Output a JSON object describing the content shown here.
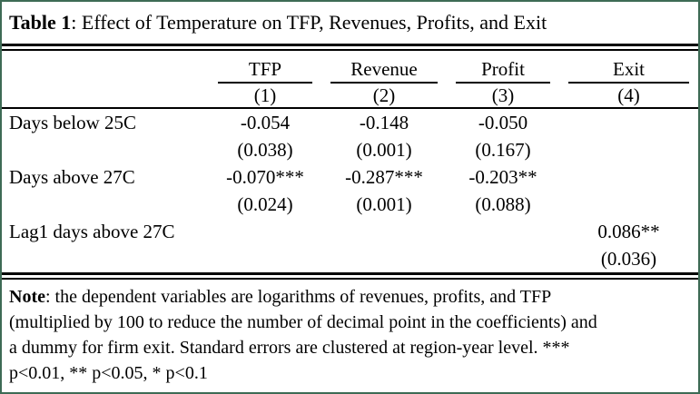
{
  "title": {
    "label": "Table 1",
    "rest": ": Effect of Temperature on TFP, Revenues, Profits, and Exit"
  },
  "table": {
    "columns": [
      {
        "name": "TFP",
        "number": "(1)"
      },
      {
        "name": "Revenue",
        "number": "(2)"
      },
      {
        "name": "Profit",
        "number": "(3)"
      },
      {
        "name": "Exit",
        "number": "(4)"
      }
    ],
    "rows": [
      {
        "label": "Days below 25C",
        "values": [
          "-0.054",
          "-0.148",
          "-0.050",
          ""
        ]
      },
      {
        "label": "",
        "values": [
          "(0.038)",
          "(0.001)",
          "(0.167)",
          ""
        ]
      },
      {
        "label": "Days above 27C",
        "values": [
          "-0.070***",
          "-0.287***",
          "-0.203**",
          ""
        ]
      },
      {
        "label": "",
        "values": [
          "(0.024)",
          "(0.001)",
          "(0.088)",
          ""
        ]
      },
      {
        "label": "Lag1 days above 27C",
        "values": [
          "",
          "",
          "",
          "0.086**"
        ]
      },
      {
        "label": "",
        "values": [
          "",
          "",
          "",
          "(0.036)"
        ]
      }
    ]
  },
  "note": {
    "label": "Note",
    "full_text": ": the dependent variables are logarithms of revenues, profits, and TFP (multiplied by 100 to reduce the number of decimal point in the coefficients) and a dummy for firm exit. Standard errors are clustered at region-year level. *** p<0.01, ** p<0.05, * p<0.1",
    "line1": ": the dependent variables are logarithms of revenues, profits, and TFP",
    "line2": "(multiplied by 100 to reduce the number of decimal point in the coefficients) and",
    "line3": "a dummy for firm exit. Standard errors are clustered at region-year level. ***",
    "line4": "p<0.01, ** p<0.05, * p<0.1"
  },
  "colors": {
    "outer_border_green": "#3e6b55",
    "rule_black": "#000000"
  }
}
